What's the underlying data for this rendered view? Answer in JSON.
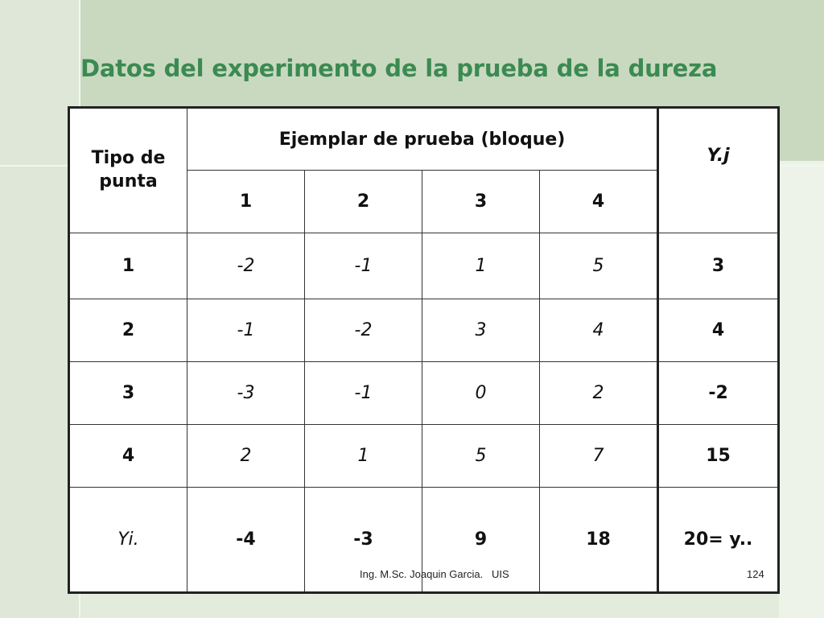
{
  "slide": {
    "title": "Datos del experimento de la prueba de la dureza",
    "footer": "Ing. M.Sc. Joaquin Garcia.   UIS",
    "page_number": "124"
  },
  "table": {
    "row_header_label": "Tipo de punta",
    "group_header_label": "Ejemplar de prueba (bloque)",
    "total_col_label": "Y.j",
    "block_labels": [
      "1",
      "2",
      "3",
      "4"
    ],
    "rows": [
      {
        "tip": "1",
        "values": [
          "-2",
          "-1",
          "1",
          "5"
        ],
        "total": "3"
      },
      {
        "tip": "2",
        "values": [
          "-1",
          "-2",
          "3",
          "4"
        ],
        "total": "4"
      },
      {
        "tip": "3",
        "values": [
          "-3",
          "-1",
          "0",
          "2"
        ],
        "total": "-2"
      },
      {
        "tip": "4",
        "values": [
          "2",
          "1",
          "5",
          "7"
        ],
        "total": "15"
      }
    ],
    "totals_row": {
      "label": "Yi.",
      "values": [
        "-4",
        "-3",
        "9",
        "18"
      ],
      "grand_total": "20= y.."
    }
  },
  "colors": {
    "title": "#3b8a52",
    "totals": "#2f6b1c"
  }
}
